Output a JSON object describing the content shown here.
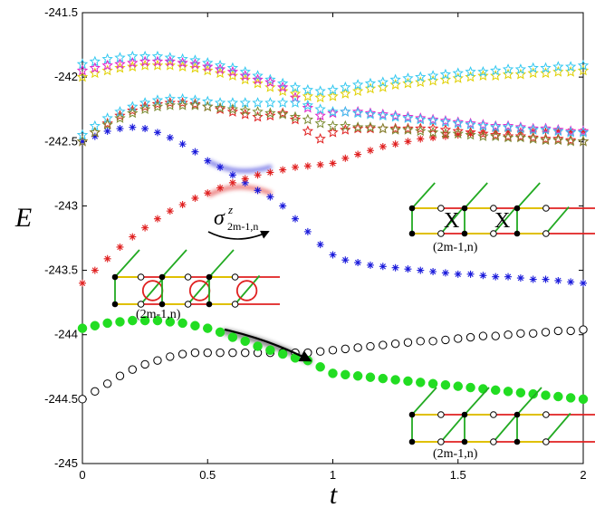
{
  "chart_data": {
    "type": "scatter",
    "xlabel": "t",
    "ylabel": "E",
    "xlim": [
      0,
      2
    ],
    "ylim": [
      -245,
      -241.5
    ],
    "xticks": [
      "0",
      "0.5",
      "1",
      "1.5",
      "2"
    ],
    "yticks": [
      "-241.5",
      "-242",
      "-242.5",
      "-243",
      "-243.5",
      "-244",
      "-244.5",
      "-245"
    ],
    "grid": false,
    "colors": {
      "green": "#22dd22",
      "blue": "#1a1adb",
      "red": "#e02020",
      "yellow": "#e0d000",
      "cyan": "#33c8f0",
      "magenta": "#e020c8",
      "olive": "#7a8a30",
      "ground": "#000000",
      "red_dark": "#c01010"
    },
    "series": [
      {
        "key": "ground",
        "marker": "open-circle",
        "color": "ground",
        "x": [
          0,
          0.05,
          0.1,
          0.15,
          0.2,
          0.25,
          0.3,
          0.35,
          0.4,
          0.45,
          0.5,
          0.55,
          0.6,
          0.65,
          0.7,
          0.75,
          0.8,
          0.85,
          0.9,
          0.95,
          1,
          1.05,
          1.1,
          1.15,
          1.2,
          1.25,
          1.3,
          1.35,
          1.4,
          1.45,
          1.5,
          1.55,
          1.6,
          1.65,
          1.7,
          1.75,
          1.8,
          1.85,
          1.9,
          1.95,
          2
        ],
        "y": [
          -244.5,
          -244.44,
          -244.38,
          -244.32,
          -244.27,
          -244.23,
          -244.2,
          -244.17,
          -244.15,
          -244.14,
          -244.14,
          -244.14,
          -244.14,
          -244.14,
          -244.14,
          -244.14,
          -244.14,
          -244.14,
          -244.14,
          -244.13,
          -244.12,
          -244.11,
          -244.1,
          -244.09,
          -244.08,
          -244.07,
          -244.06,
          -244.05,
          -244.05,
          -244.04,
          -244.03,
          -244.02,
          -244.01,
          -244.01,
          -244.0,
          -243.99,
          -243.99,
          -243.98,
          -243.97,
          -243.97,
          -243.96
        ]
      },
      {
        "key": "green",
        "marker": "filled-circle",
        "color": "green",
        "x": [
          0,
          0.05,
          0.1,
          0.15,
          0.2,
          0.25,
          0.3,
          0.35,
          0.4,
          0.45,
          0.5,
          0.55,
          0.6,
          0.65,
          0.7,
          0.75,
          0.8,
          0.85,
          0.9,
          0.95,
          1,
          1.05,
          1.1,
          1.15,
          1.2,
          1.25,
          1.3,
          1.35,
          1.4,
          1.45,
          1.5,
          1.55,
          1.6,
          1.65,
          1.7,
          1.75,
          1.8,
          1.85,
          1.9,
          1.95,
          2
        ],
        "y": [
          -243.95,
          -243.93,
          -243.91,
          -243.9,
          -243.89,
          -243.89,
          -243.89,
          -243.9,
          -243.91,
          -243.93,
          -243.95,
          -243.98,
          -244.02,
          -244.05,
          -244.09,
          -244.12,
          -244.15,
          -244.18,
          -244.2,
          -244.25,
          -244.3,
          -244.31,
          -244.32,
          -244.33,
          -244.34,
          -244.35,
          -244.36,
          -244.37,
          -244.38,
          -244.39,
          -244.4,
          -244.41,
          -244.42,
          -244.43,
          -244.44,
          -244.45,
          -244.46,
          -244.47,
          -244.48,
          -244.49,
          -244.5
        ]
      },
      {
        "key": "blue",
        "marker": "asterisk",
        "color": "blue",
        "x": [
          0,
          0.05,
          0.1,
          0.15,
          0.2,
          0.25,
          0.3,
          0.35,
          0.4,
          0.45,
          0.5,
          0.55,
          0.6,
          0.65,
          0.7,
          0.75,
          0.8,
          0.85,
          0.9,
          0.95,
          1,
          1.05,
          1.1,
          1.15,
          1.2,
          1.25,
          1.3,
          1.35,
          1.4,
          1.45,
          1.5,
          1.55,
          1.6,
          1.65,
          1.7,
          1.75,
          1.8,
          1.85,
          1.9,
          1.95,
          2
        ],
        "y": [
          -242.5,
          -242.46,
          -242.42,
          -242.4,
          -242.39,
          -242.4,
          -242.43,
          -242.47,
          -242.52,
          -242.58,
          -242.65,
          -242.7,
          -242.76,
          -242.82,
          -242.88,
          -242.93,
          -243.0,
          -243.1,
          -243.2,
          -243.3,
          -243.38,
          -243.42,
          -243.44,
          -243.46,
          -243.47,
          -243.48,
          -243.49,
          -243.5,
          -243.51,
          -243.52,
          -243.53,
          -243.53,
          -243.54,
          -243.55,
          -243.55,
          -243.56,
          -243.57,
          -243.57,
          -243.58,
          -243.59,
          -243.6
        ]
      },
      {
        "key": "red",
        "marker": "asterisk",
        "color": "red",
        "x": [
          0,
          0.05,
          0.1,
          0.15,
          0.2,
          0.25,
          0.3,
          0.35,
          0.4,
          0.45,
          0.5,
          0.55,
          0.6,
          0.65,
          0.7,
          0.75,
          0.8,
          0.85,
          0.9,
          0.95,
          1,
          1.05,
          1.1,
          1.15,
          1.2,
          1.25,
          1.3,
          1.35,
          1.4,
          1.45,
          1.5,
          1.55,
          1.6,
          1.65,
          1.7,
          1.75,
          1.8,
          1.85,
          1.9,
          1.95,
          2
        ],
        "y": [
          -243.6,
          -243.5,
          -243.41,
          -243.32,
          -243.24,
          -243.17,
          -243.1,
          -243.04,
          -242.99,
          -242.94,
          -242.9,
          -242.86,
          -242.82,
          -242.79,
          -242.76,
          -242.74,
          -242.72,
          -242.7,
          -242.69,
          -242.68,
          -242.67,
          -242.63,
          -242.6,
          -242.57,
          -242.54,
          -242.52,
          -242.5,
          -242.48,
          -242.47,
          -242.46,
          -242.45,
          -242.44,
          -242.43,
          -242.42,
          -242.42,
          -242.42,
          -242.42,
          -242.42,
          -242.42,
          -242.42,
          -242.42
        ]
      },
      {
        "key": "upper-red-star",
        "marker": "star",
        "color": "red",
        "x": [
          0,
          0.05,
          0.1,
          0.15,
          0.2,
          0.25,
          0.3,
          0.35,
          0.4,
          0.45,
          0.5,
          0.55,
          0.6,
          0.65,
          0.7,
          0.75,
          0.8,
          0.85,
          0.9,
          0.95,
          1,
          1.05,
          1.1,
          1.15,
          1.2,
          1.25,
          1.3,
          1.35,
          1.4,
          1.45,
          1.5,
          1.55,
          1.6,
          1.65,
          1.7,
          1.75,
          1.8,
          1.85,
          1.9,
          1.95,
          2
        ],
        "y": [
          -242.5,
          -242.43,
          -242.36,
          -242.3,
          -242.26,
          -242.23,
          -242.21,
          -242.2,
          -242.2,
          -242.21,
          -242.23,
          -242.25,
          -242.27,
          -242.29,
          -242.31,
          -242.3,
          -242.28,
          -242.33,
          -242.42,
          -242.48,
          -242.43,
          -242.41,
          -242.4,
          -242.4,
          -242.4,
          -242.4,
          -242.4,
          -242.4,
          -242.4,
          -242.41,
          -242.42,
          -242.43,
          -242.44,
          -242.45,
          -242.46,
          -242.46,
          -242.47,
          -242.48,
          -242.48,
          -242.49,
          -242.5
        ]
      },
      {
        "key": "yellow",
        "marker": "star",
        "color": "yellow",
        "x": [
          0,
          0.05,
          0.1,
          0.15,
          0.2,
          0.25,
          0.3,
          0.35,
          0.4,
          0.45,
          0.5,
          0.55,
          0.6,
          0.65,
          0.7,
          0.75,
          0.8,
          0.85,
          0.9,
          0.95,
          1,
          1.05,
          1.1,
          1.15,
          1.2,
          1.25,
          1.3,
          1.35,
          1.4,
          1.45,
          1.5,
          1.55,
          1.6,
          1.65,
          1.7,
          1.75,
          1.8,
          1.85,
          1.9,
          1.95,
          2
        ],
        "y": [
          -242.0,
          -241.97,
          -241.95,
          -241.93,
          -241.92,
          -241.91,
          -241.91,
          -241.91,
          -241.92,
          -241.93,
          -241.95,
          -241.97,
          -241.99,
          -242.02,
          -242.05,
          -242.08,
          -242.11,
          -242.13,
          -242.15,
          -242.16,
          -242.15,
          -242.13,
          -242.11,
          -242.09,
          -242.08,
          -242.06,
          -242.05,
          -242.04,
          -242.03,
          -242.02,
          -242.01,
          -242.0,
          -241.99,
          -241.99,
          -241.98,
          -241.98,
          -241.97,
          -241.97,
          -241.96,
          -241.96,
          -241.95
        ]
      },
      {
        "key": "cyan",
        "marker": "star",
        "color": "cyan",
        "x": [
          0,
          0.05,
          0.1,
          0.15,
          0.2,
          0.25,
          0.3,
          0.35,
          0.4,
          0.45,
          0.5,
          0.55,
          0.6,
          0.65,
          0.7,
          0.75,
          0.8,
          0.85,
          0.9,
          0.95,
          1,
          1.05,
          1.1,
          1.15,
          1.2,
          1.25,
          1.3,
          1.35,
          1.4,
          1.45,
          1.5,
          1.55,
          1.6,
          1.65,
          1.7,
          1.75,
          1.8,
          1.85,
          1.9,
          1.95,
          2
        ],
        "y": [
          -241.9,
          -241.88,
          -241.86,
          -241.85,
          -241.84,
          -241.84,
          -241.84,
          -241.85,
          -241.86,
          -241.87,
          -241.89,
          -241.91,
          -241.93,
          -241.96,
          -241.99,
          -242.02,
          -242.05,
          -242.08,
          -242.1,
          -242.11,
          -242.1,
          -242.08,
          -242.06,
          -242.05,
          -242.04,
          -242.02,
          -242.01,
          -242.0,
          -241.99,
          -241.98,
          -241.97,
          -241.96,
          -241.96,
          -241.95,
          -241.94,
          -241.94,
          -241.93,
          -241.93,
          -241.92,
          -241.92,
          -241.91
        ]
      },
      {
        "key": "magenta",
        "marker": "star",
        "color": "magenta",
        "x": [
          0,
          0.05,
          0.1,
          0.15,
          0.2,
          0.25,
          0.3,
          0.35,
          0.4,
          0.45,
          0.5,
          0.55,
          0.6,
          0.65,
          0.7,
          0.75,
          0.8,
          0.85,
          0.9,
          0.95,
          1,
          1.05,
          1.1,
          1.15,
          1.2,
          1.25,
          1.3,
          1.35,
          1.4,
          1.45,
          1.5,
          1.55,
          1.6,
          1.65,
          1.7,
          1.75,
          1.8,
          1.85,
          1.9,
          1.95,
          2
        ],
        "y": [
          -241.95,
          -241.93,
          -241.91,
          -241.9,
          -241.89,
          -241.88,
          -241.88,
          -241.88,
          -241.89,
          -241.9,
          -241.92,
          -241.94,
          -241.96,
          -241.99,
          -242.02,
          -242.04,
          -242.08,
          -242.16,
          -242.24,
          -242.3,
          -242.28,
          -242.27,
          -242.27,
          -242.28,
          -242.29,
          -242.3,
          -242.31,
          -242.32,
          -242.33,
          -242.34,
          -242.35,
          -242.36,
          -242.37,
          -242.38,
          -242.38,
          -242.39,
          -242.4,
          -242.4,
          -242.41,
          -242.42,
          -242.42
        ]
      },
      {
        "key": "lower-cyan",
        "marker": "star",
        "color": "cyan",
        "x": [
          0,
          0.05,
          0.1,
          0.15,
          0.2,
          0.25,
          0.3,
          0.35,
          0.4,
          0.45,
          0.5,
          0.55,
          0.6,
          0.65,
          0.7,
          0.75,
          0.8,
          0.85,
          0.9,
          0.95,
          1,
          1.05,
          1.1,
          1.15,
          1.2,
          1.25,
          1.3,
          1.35,
          1.4,
          1.45,
          1.5,
          1.55,
          1.6,
          1.65,
          1.7,
          1.75,
          1.8,
          1.85,
          1.9,
          1.95,
          2
        ],
        "y": [
          -242.45,
          -242.38,
          -242.32,
          -242.27,
          -242.23,
          -242.2,
          -242.18,
          -242.17,
          -242.17,
          -242.18,
          -242.19,
          -242.2,
          -242.2,
          -242.2,
          -242.2,
          -242.2,
          -242.2,
          -242.2,
          -242.22,
          -242.25,
          -242.27,
          -242.27,
          -242.28,
          -242.29,
          -242.3,
          -242.31,
          -242.32,
          -242.33,
          -242.34,
          -242.35,
          -242.36,
          -242.37,
          -242.38,
          -242.39,
          -242.39,
          -242.4,
          -242.41,
          -242.41,
          -242.42,
          -242.43,
          -242.43
        ]
      },
      {
        "key": "lower-olive",
        "marker": "star",
        "color": "olive",
        "x": [
          0,
          0.05,
          0.1,
          0.15,
          0.2,
          0.25,
          0.3,
          0.35,
          0.4,
          0.45,
          0.5,
          0.55,
          0.6,
          0.65,
          0.7,
          0.75,
          0.8,
          0.85,
          0.9,
          0.95,
          1,
          1.05,
          1.1,
          1.15,
          1.2,
          1.25,
          1.3,
          1.35,
          1.4,
          1.45,
          1.5,
          1.55,
          1.6,
          1.65,
          1.7,
          1.75,
          1.8,
          1.85,
          1.9,
          1.95,
          2
        ],
        "y": [
          -242.5,
          -242.43,
          -242.37,
          -242.32,
          -242.28,
          -242.25,
          -242.23,
          -242.22,
          -242.22,
          -242.22,
          -242.23,
          -242.24,
          -242.25,
          -242.26,
          -242.27,
          -242.28,
          -242.29,
          -242.31,
          -242.33,
          -242.36,
          -242.38,
          -242.38,
          -242.39,
          -242.39,
          -242.4,
          -242.41,
          -242.41,
          -242.42,
          -242.43,
          -242.44,
          -242.44,
          -242.45,
          -242.46,
          -242.46,
          -242.47,
          -242.47,
          -242.48,
          -242.49,
          -242.49,
          -242.5,
          -242.5
        ]
      }
    ],
    "annotations": {
      "sigma": "σ",
      "sigma_sub": "2m-1,n",
      "sigma_sup": "z",
      "x_mark": "X",
      "site_labels": [
        "(2m-1,n)",
        "(2m-1,n)",
        "(2m-1,n)"
      ]
    }
  }
}
